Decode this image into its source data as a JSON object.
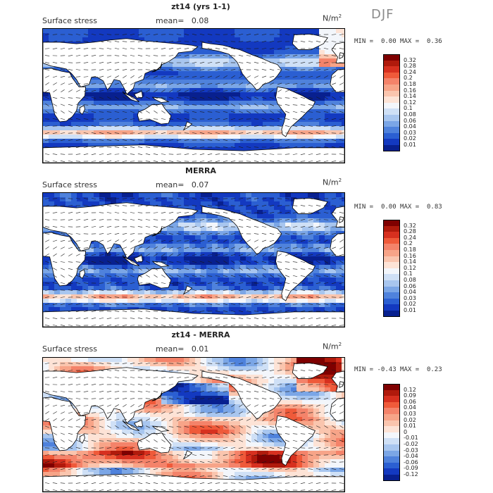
{
  "season": "DJF",
  "units": {
    "base": "N/m",
    "exp": "2"
  },
  "colors": {
    "land": "#ffffff",
    "coast": "#000000",
    "arrow": "#1a1a1a"
  },
  "panels": [
    {
      "id": "model",
      "title": "zt14 (yrs 1-1)",
      "variable": "Surface stress",
      "mean_label": "mean=",
      "mean_value": "0.08",
      "min_label": "MIN =",
      "min_value": "0.00",
      "max_label": "MAX =",
      "max_value": "0.36",
      "colorbar": {
        "ticks": [
          "0.32",
          "0.28",
          "0.24",
          "0.2",
          "0.18",
          "0.16",
          "0.14",
          "0.12",
          "0.1",
          "0.08",
          "0.06",
          "0.04",
          "0.03",
          "0.02",
          "0.01"
        ],
        "colors": [
          "#7f0000",
          "#b01a0c",
          "#d7301f",
          "#ef5a3a",
          "#f4836a",
          "#f7a488",
          "#fac5ae",
          "#fde3d6",
          "#f3f6fb",
          "#cfe0f6",
          "#a8c6ef",
          "#7ba6e6",
          "#4f82dc",
          "#2b5fd2",
          "#1339c0",
          "#08208f"
        ]
      },
      "map_field": "ms"
    },
    {
      "id": "obs",
      "title": "MERRA",
      "variable": "Surface stress",
      "mean_label": "mean=",
      "mean_value": "0.07",
      "min_label": "MIN =",
      "min_value": "0.00",
      "max_label": "MAX =",
      "max_value": "0.83",
      "colorbar": {
        "ticks": [
          "0.32",
          "0.28",
          "0.24",
          "0.2",
          "0.18",
          "0.16",
          "0.14",
          "0.12",
          "0.1",
          "0.08",
          "0.06",
          "0.04",
          "0.03",
          "0.02",
          "0.01"
        ],
        "colors": [
          "#7f0000",
          "#b01a0c",
          "#d7301f",
          "#ef5a3a",
          "#f4836a",
          "#f7a488",
          "#fac5ae",
          "#fde3d6",
          "#f3f6fb",
          "#cfe0f6",
          "#a8c6ef",
          "#7ba6e6",
          "#4f82dc",
          "#2b5fd2",
          "#1339c0",
          "#08208f"
        ]
      },
      "map_field": "obs"
    },
    {
      "id": "diff",
      "title": "zt14 - MERRA",
      "variable": "Surface stress",
      "mean_label": "mean=",
      "mean_value": "0.01",
      "min_label": "MIN =",
      "min_value": "-0.43",
      "max_label": "MAX =",
      "max_value": "0.23",
      "colorbar": {
        "ticks": [
          "0.12",
          "0.09",
          "0.06",
          "0.04",
          "0.03",
          "0.02",
          "0.01",
          "0",
          "-0.01",
          "-0.02",
          "-0.03",
          "-0.04",
          "-0.06",
          "-0.09",
          "-0.12"
        ],
        "colors": [
          "#7f0000",
          "#b01a0c",
          "#d7301f",
          "#ef5a3a",
          "#f4836a",
          "#f7a488",
          "#fac5ae",
          "#fde3d6",
          "#f3f6fb",
          "#cfe0f6",
          "#a8c6ef",
          "#7ba6e6",
          "#4f82dc",
          "#2b5fd2",
          "#1339c0",
          "#08208f"
        ]
      },
      "map_field": "diff"
    }
  ]
}
